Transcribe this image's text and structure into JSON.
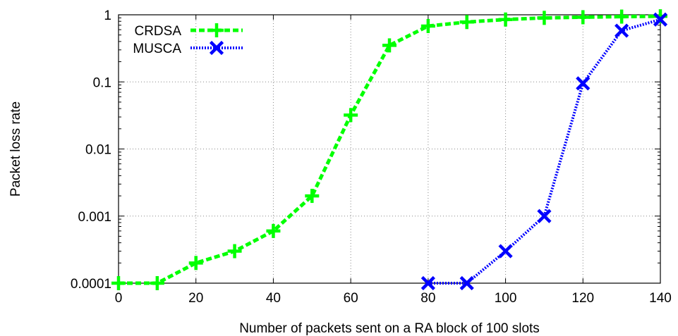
{
  "chart_data": {
    "type": "line",
    "xlabel": "Number of packets sent on a RA block of 100 slots",
    "ylabel": "Packet loss rate",
    "xlim": [
      0,
      140
    ],
    "ylim": [
      0.0001,
      1
    ],
    "yscale": "log",
    "grid": true,
    "legend_position": "top-left",
    "x_ticks": [
      "0",
      "20",
      "40",
      "60",
      "80",
      "100",
      "120",
      "140"
    ],
    "y_ticks": [
      "0.0001",
      "0.001",
      "0.01",
      "0.1",
      "1"
    ],
    "series": [
      {
        "name": "CRDSA",
        "color": "#00ff00",
        "marker": "plus",
        "line": "dashed",
        "x": [
          0,
          10,
          20,
          30,
          40,
          50,
          60,
          70,
          80,
          90,
          100,
          110,
          120,
          130,
          140
        ],
        "y": [
          0.0001,
          0.0001,
          0.0002,
          0.0003,
          0.0006,
          0.002,
          0.032,
          0.35,
          0.68,
          0.78,
          0.85,
          0.9,
          0.92,
          0.94,
          0.95
        ]
      },
      {
        "name": "MUSCA",
        "color": "#0000ff",
        "marker": "x",
        "line": "dotted",
        "x": [
          80,
          90,
          100,
          110,
          120,
          130,
          140
        ],
        "y": [
          0.0001,
          0.0001,
          0.0003,
          0.001,
          0.095,
          0.58,
          0.85
        ]
      }
    ]
  }
}
